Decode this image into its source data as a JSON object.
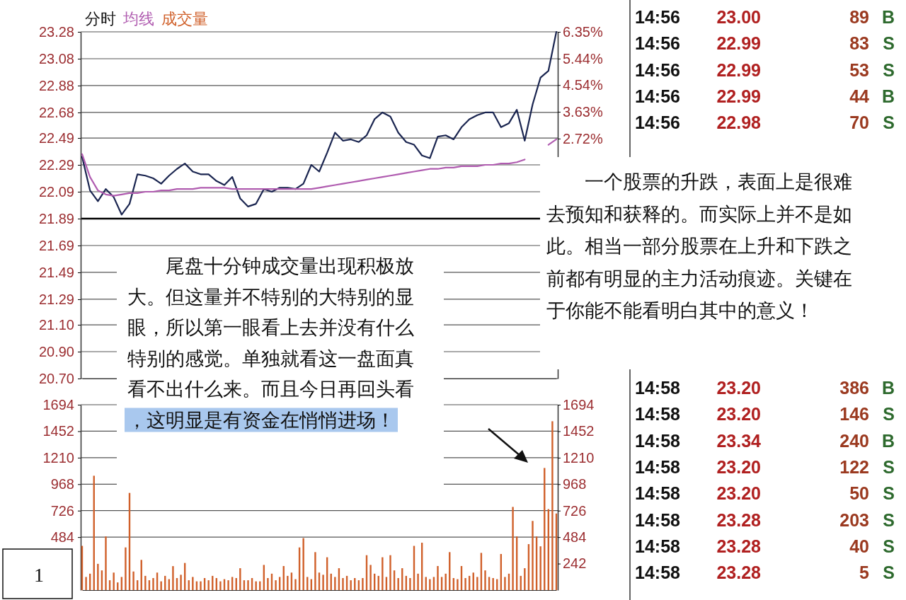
{
  "chart_data": [
    {
      "type": "line",
      "title": "分时",
      "grid": "y",
      "categories": [
        null,
        null,
        null,
        null,
        null,
        null,
        null,
        null,
        null,
        null,
        null,
        null,
        null,
        null,
        null,
        null,
        null,
        null,
        null,
        null,
        null,
        null,
        null,
        null,
        null,
        null,
        null,
        null,
        null,
        null,
        null,
        null,
        null,
        null,
        null,
        null,
        null,
        null,
        null,
        null,
        null,
        null,
        null,
        null,
        null,
        null,
        null,
        null,
        null,
        null,
        null,
        null,
        null,
        null,
        null,
        null,
        null,
        null,
        null,
        null,
        null
      ],
      "ylim": [
        20.7,
        23.28
      ],
      "yticks": [
        {
          "value": 23.28,
          "label": "23.28"
        },
        {
          "value": 23.08,
          "label": "23.08"
        },
        {
          "value": 22.88,
          "label": "22.88"
        },
        {
          "value": 22.68,
          "label": "22.68"
        },
        {
          "value": 22.49,
          "label": "22.49"
        },
        {
          "value": 22.29,
          "label": "22.29"
        },
        {
          "value": 22.09,
          "label": "22.09"
        },
        {
          "value": 21.89,
          "label": "21.89"
        },
        {
          "value": 21.69,
          "label": "21.69"
        },
        {
          "value": 21.49,
          "label": "21.49"
        },
        {
          "value": 21.29,
          "label": "21.29"
        },
        {
          "value": 21.1,
          "label": "21.10"
        },
        {
          "value": 20.9,
          "label": "20.90"
        },
        {
          "value": 20.7,
          "label": "20.70"
        }
      ],
      "y2lim": [
        -5.44,
        6.35
      ],
      "y2ticks": [
        {
          "value": 6.35,
          "label": "6.35%"
        },
        {
          "value": 5.44,
          "label": "5.44%"
        },
        {
          "value": 4.54,
          "label": "4.54%"
        },
        {
          "value": 3.63,
          "label": "3.63%"
        },
        {
          "value": 2.72,
          "label": "2.72%"
        }
      ],
      "ref_lines": [
        {
          "axis": "y",
          "value": 21.89,
          "color": "#000000"
        }
      ],
      "series": [
        {
          "color": "#1a2550",
          "values": [
            22.35,
            22.1,
            22.02,
            22.11,
            22.05,
            21.92,
            22.0,
            22.22,
            22.21,
            22.19,
            22.15,
            22.21,
            22.26,
            22.3,
            22.24,
            22.22,
            22.22,
            22.17,
            22.14,
            22.2,
            22.04,
            21.98,
            22.0,
            22.11,
            22.09,
            22.12,
            22.12,
            22.11,
            22.15,
            22.29,
            22.24,
            22.38,
            22.53,
            22.47,
            22.48,
            22.46,
            22.51,
            22.63,
            22.68,
            22.65,
            22.53,
            22.46,
            22.44,
            22.36,
            22.34,
            22.5,
            22.51,
            22.48,
            22.57,
            22.63,
            22.66,
            22.68,
            22.68,
            22.57,
            22.6,
            22.7,
            22.47,
            22.74,
            22.94,
            22.99,
            23.28
          ]
        },
        {
          "name": "均线",
          "color": "#b05cb0",
          "values": [
            22.37,
            22.2,
            22.1,
            22.07,
            22.06,
            22.07,
            22.08,
            22.08,
            22.09,
            22.09,
            22.1,
            22.1,
            22.11,
            22.11,
            22.11,
            22.12,
            22.12,
            22.12,
            22.12,
            22.11,
            22.11,
            22.11,
            22.11,
            22.11,
            22.11,
            22.11,
            22.11,
            22.11,
            22.11,
            22.11,
            22.12,
            22.13,
            22.14,
            22.15,
            22.16,
            22.17,
            22.18,
            22.19,
            22.2,
            22.21,
            22.22,
            22.23,
            22.24,
            22.25,
            22.26,
            22.26,
            22.27,
            22.27,
            22.28,
            22.28,
            22.28,
            22.29,
            22.29,
            22.3,
            22.3,
            22.31,
            22.33,
            null,
            null,
            22.44,
            22.48
          ]
        }
      ],
      "annotations": [
        "尾盘十分钟成交量出现积极放大。但这量并不特别的大特别的显眼，所以第一眼看上去并没有什么特别的感觉。单独就看这一盘面真看不出什么来。而且今日再回头看，这明显是有资金在悄悄进场！",
        "一个股票的升跌，表面上是很难去预知和获释的。而实际上并不是如此。相当一部分股票在上升和下跌之前都有明显的主力活动痕迹。关键在于你能不能看明白其中的意义！"
      ]
    },
    {
      "type": "bar",
      "grid": "y",
      "categories": [
        null,
        null,
        null,
        null,
        null,
        null,
        null,
        null,
        null,
        null,
        null,
        null,
        null,
        null,
        null,
        null,
        null,
        null,
        null,
        null,
        null,
        null,
        null,
        null,
        null,
        null,
        null,
        null,
        null,
        null,
        null,
        null,
        null,
        null,
        null,
        null,
        null,
        null,
        null,
        null,
        null,
        null,
        null,
        null,
        null,
        null,
        null,
        null,
        null,
        null,
        null,
        null,
        null,
        null,
        null,
        null,
        null,
        null,
        null,
        null,
        null,
        null,
        null,
        null,
        null,
        null,
        null,
        null,
        null,
        null,
        null,
        null,
        null,
        null,
        null,
        null,
        null,
        null,
        null,
        null,
        null,
        null,
        null,
        null,
        null,
        null,
        null,
        null,
        null,
        null,
        null,
        null,
        null,
        null,
        null,
        null,
        null,
        null,
        null,
        null,
        null,
        null,
        null,
        null,
        null,
        null,
        null,
        null,
        null,
        null,
        null,
        null,
        null,
        null,
        null,
        null,
        null,
        null,
        null,
        null,
        null
      ],
      "ylim": [
        0,
        1694
      ],
      "yticks": [
        484,
        726,
        968,
        1210,
        1452,
        1694
      ],
      "y2lim": [
        0,
        1694
      ],
      "y2ticks": [
        242,
        484,
        726,
        968,
        1210,
        1452,
        1694
      ],
      "series": [
        {
          "name": "成交量",
          "color": "#d0602a",
          "values": [
            404,
            120,
            150,
            1045,
            240,
            180,
            490,
            90,
            160,
            70,
            120,
            390,
            888,
            170,
            90,
            276,
            130,
            90,
            110,
            160,
            80,
            130,
            100,
            219,
            110,
            140,
            248,
            90,
            120,
            80,
            80,
            110,
            90,
            130,
            110,
            80,
            100,
            90,
            120,
            110,
            200,
            90,
            90,
            110,
            80,
            80,
            230,
            110,
            150,
            90,
            120,
            220,
            130,
            160,
            100,
            390,
            475,
            120,
            100,
            347,
            160,
            140,
            300,
            150,
            120,
            200,
            110,
            130,
            90,
            110,
            90,
            110,
            319,
            230,
            150,
            130,
            300,
            120,
            319,
            180,
            110,
            200,
            130,
            110,
            404,
            150,
            433,
            120,
            100,
            120,
            220,
            120,
            150,
            347,
            110,
            100,
            220,
            110,
            130,
            160,
            120,
            340,
            180,
            120,
            110,
            100,
            330,
            120,
            150,
            760,
            490,
            130,
            200,
            420,
            632,
            490,
            400,
            1116,
            740,
            1543,
            700
          ]
        }
      ],
      "annotations": [
        "1"
      ]
    },
    {
      "type": "other",
      "annotations": [
        "14:56 23.00 89 B",
        "14:56 22.99 83 S",
        "14:56 22.99 53 S",
        "14:56 22.99 44 B",
        "14:56 22.98 70 S",
        "14:58 23.20 386 B",
        "14:58 23.20 146 S",
        "14:58 23.34 240 B",
        "14:58 23.20 122 S",
        "14:58 23.20 50 S",
        "14:58 23.28 203 S",
        "14:58 23.28 40 S",
        "14:58 23.28 5 S"
      ]
    }
  ]
}
